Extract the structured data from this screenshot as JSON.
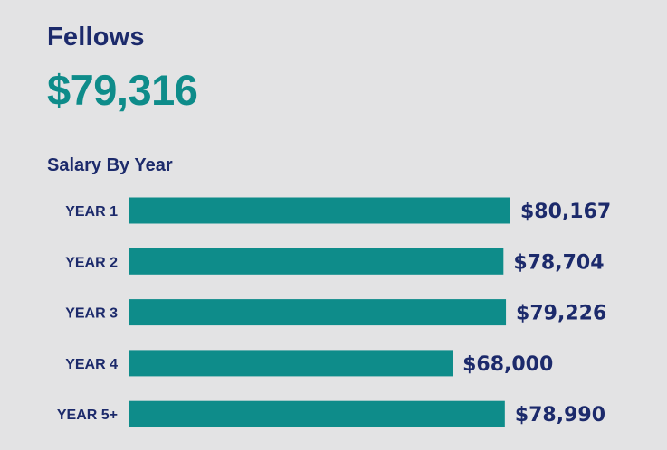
{
  "header": {
    "title": "Fellows",
    "headline_value": "$79,316"
  },
  "colors": {
    "bar": "#0e8c8a",
    "text": "#1c2a6b",
    "background": "#e3e3e4"
  },
  "chart_data": {
    "type": "bar",
    "orientation": "horizontal",
    "title": "Salary By Year",
    "xlabel": "",
    "ylabel": "",
    "categories": [
      "YEAR 1",
      "YEAR 2",
      "YEAR 3",
      "YEAR 4",
      "YEAR 5+"
    ],
    "values": [
      80167,
      78704,
      79226,
      68000,
      78990
    ],
    "value_labels": [
      "$80,167",
      "$78,704",
      "$79,226",
      "$68,000",
      "$78,990"
    ],
    "grid": false,
    "legend": "none"
  }
}
